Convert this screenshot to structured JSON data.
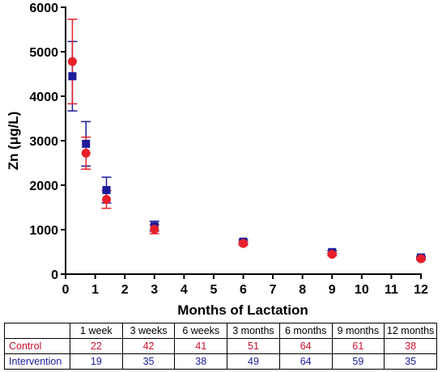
{
  "chart_data": {
    "type": "scatter",
    "xlabel": "Months of Lactation",
    "ylabel": "Zn (μg/L)",
    "xlim": [
      0,
      12
    ],
    "ylim": [
      0,
      6000
    ],
    "xticks": [
      0,
      1,
      2,
      3,
      4,
      5,
      6,
      7,
      8,
      9,
      10,
      11,
      12
    ],
    "yticks": [
      0,
      1000,
      2000,
      3000,
      4000,
      5000,
      6000
    ],
    "grid": false,
    "series": [
      {
        "name": "Control",
        "color": "#e8202a",
        "marker": "circle",
        "x": [
          0.23,
          0.69,
          1.38,
          3,
          6,
          9,
          12
        ],
        "y": [
          4780,
          2720,
          1680,
          1010,
          690,
          445,
          345
        ],
        "err": [
          950,
          360,
          200,
          100,
          40,
          30,
          25
        ]
      },
      {
        "name": "Intervention",
        "color": "#1c1c9a",
        "marker": "square",
        "x": [
          0.23,
          0.69,
          1.38,
          3,
          6,
          9,
          12
        ],
        "y": [
          4450,
          2930,
          1890,
          1080,
          730,
          495,
          375
        ],
        "err": [
          780,
          500,
          290,
          110,
          40,
          30,
          25
        ]
      }
    ]
  },
  "table": {
    "headers": [
      "",
      "1 week",
      "3 weeks",
      "6 weeks",
      "3 months",
      "6 months",
      "9 months",
      "12 months"
    ],
    "rows": [
      {
        "label": "Control",
        "values": [
          "22",
          "42",
          "41",
          "51",
          "64",
          "61",
          "38"
        ]
      },
      {
        "label": "Intervention",
        "values": [
          "19",
          "35",
          "38",
          "49",
          "64",
          "59",
          "35"
        ]
      }
    ]
  }
}
